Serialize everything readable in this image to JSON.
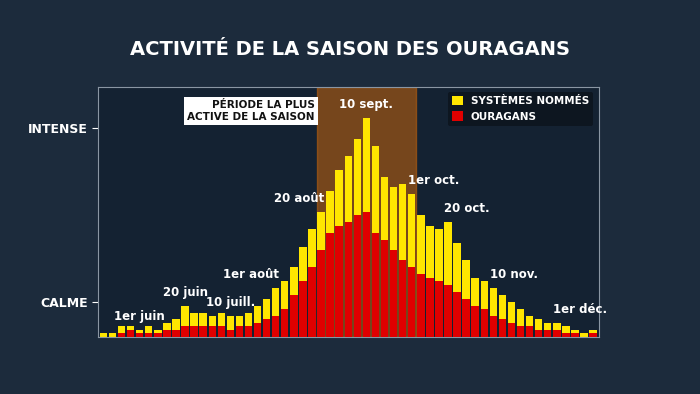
{
  "chart_data": {
    "type": "bar",
    "title": "ACTIVITÉ DE LA SAISON DES OURAGANS",
    "categories": [
      null,
      null,
      null,
      null,
      "1er juin",
      null,
      null,
      null,
      null,
      "20 juin",
      null,
      null,
      null,
      null,
      "10 juill.",
      null,
      null,
      null,
      null,
      "1er août",
      null,
      null,
      null,
      null,
      "20 août",
      null,
      null,
      null,
      null,
      "10 sept.",
      null,
      null,
      null,
      null,
      "1er oct.",
      null,
      null,
      null,
      "20 oct.",
      null,
      null,
      null,
      null,
      "10 nov.",
      null,
      null,
      null,
      null,
      null,
      null,
      "1er déc.",
      null,
      null,
      null,
      null
    ],
    "series": [
      {
        "name": "SYSTÈMES NOMMÉS",
        "color": "#ffe600",
        "values": [
          1,
          1,
          3,
          3,
          2,
          3,
          2,
          4,
          5,
          9,
          7,
          7,
          6,
          7,
          6,
          6,
          7,
          9,
          11,
          14,
          16,
          20,
          26,
          31,
          36,
          42,
          48,
          52,
          57,
          63,
          55,
          46,
          43,
          44,
          41,
          35,
          32,
          31,
          33,
          27,
          22,
          17,
          16,
          14,
          12,
          10,
          8,
          6,
          5,
          4,
          4,
          3,
          2,
          1,
          2
        ]
      },
      {
        "name": "OURAGANS",
        "color": "#e00000",
        "values": [
          0,
          0,
          1,
          2,
          1,
          1,
          1,
          2,
          2,
          3,
          3,
          3,
          3,
          3,
          2,
          3,
          3,
          4,
          5,
          6,
          8,
          12,
          16,
          20,
          25,
          30,
          32,
          33,
          35,
          36,
          30,
          28,
          25,
          22,
          20,
          18,
          17,
          16,
          15,
          13,
          11,
          9,
          8,
          6,
          5,
          4,
          3,
          3,
          2,
          2,
          2,
          1,
          1,
          0,
          1
        ]
      }
    ],
    "stacked": false,
    "ylim": [
      0,
      72
    ],
    "yticks": [
      {
        "value": 10,
        "label": "CALME"
      },
      {
        "value": 60,
        "label": "INTENSE"
      }
    ],
    "tick_labels": "y",
    "legend": "upper right",
    "annotations": [
      {
        "text": "PÉRIODE LA PLUS\nACTIVE DE LA SAISON",
        "from": "20 août",
        "to": "1er oct."
      }
    ]
  }
}
